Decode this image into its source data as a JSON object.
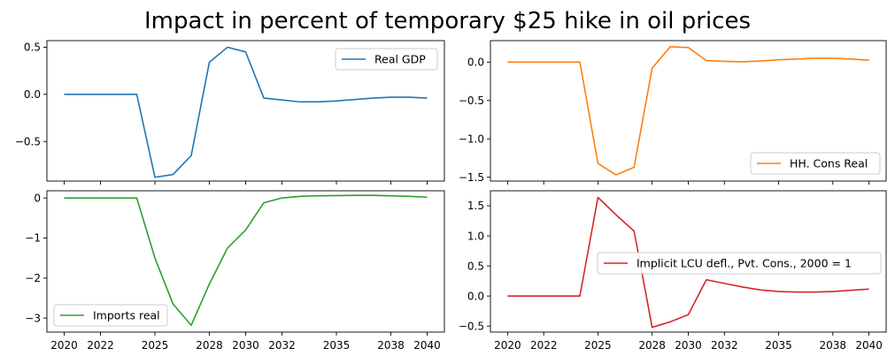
{
  "figure": {
    "title": "Impact in percent of temporary $25 hike in oil prices"
  },
  "chart_data": [
    {
      "type": "line",
      "panel": "top-left",
      "x": [
        2020,
        2021,
        2022,
        2023,
        2024,
        2025,
        2026,
        2027,
        2028,
        2029,
        2030,
        2031,
        2032,
        2033,
        2034,
        2035,
        2036,
        2037,
        2038,
        2039,
        2040
      ],
      "series": [
        {
          "name": "Real GDP",
          "color": "#1f77b4",
          "values": [
            0,
            0,
            0,
            0,
            0,
            -0.88,
            -0.85,
            -0.65,
            0.34,
            0.5,
            0.45,
            -0.04,
            -0.06,
            -0.08,
            -0.08,
            -0.07,
            -0.055,
            -0.04,
            -0.03,
            -0.03,
            -0.04
          ]
        }
      ],
      "ylim": [
        -0.92,
        0.57
      ],
      "yticks": [
        0.5,
        0.0,
        -0.5
      ],
      "ytick_labels": [
        "0.5",
        "0.0",
        "−0.5"
      ],
      "xticks": [],
      "legend": "upper right"
    },
    {
      "type": "line",
      "panel": "top-right",
      "x": [
        2020,
        2021,
        2022,
        2023,
        2024,
        2025,
        2026,
        2027,
        2028,
        2029,
        2030,
        2031,
        2032,
        2033,
        2034,
        2035,
        2036,
        2037,
        2038,
        2039,
        2040
      ],
      "series": [
        {
          "name": "HH. Cons Real",
          "color": "#ff7f0e",
          "values": [
            0,
            0,
            0,
            0,
            0,
            -1.32,
            -1.47,
            -1.37,
            -0.08,
            0.2,
            0.19,
            0.02,
            0.01,
            0.005,
            0.015,
            0.03,
            0.04,
            0.05,
            0.05,
            0.04,
            0.025
          ]
        }
      ],
      "ylim": [
        -1.55,
        0.28
      ],
      "yticks": [
        0.0,
        -0.5,
        -1.0,
        -1.5
      ],
      "ytick_labels": [
        "0.0",
        "−0.5",
        "−1.0",
        "−1.5"
      ],
      "xticks": [],
      "legend": "lower right"
    },
    {
      "type": "line",
      "panel": "bottom-left",
      "x": [
        2020,
        2021,
        2022,
        2023,
        2024,
        2025,
        2026,
        2027,
        2028,
        2029,
        2030,
        2031,
        2032,
        2033,
        2034,
        2035,
        2036,
        2037,
        2038,
        2039,
        2040
      ],
      "series": [
        {
          "name": "Imports real",
          "color": "#2ca02c",
          "values": [
            0,
            0,
            0,
            0,
            0,
            -1.5,
            -2.65,
            -3.18,
            -2.15,
            -1.25,
            -0.8,
            -0.12,
            0,
            0.04,
            0.055,
            0.06,
            0.065,
            0.065,
            0.055,
            0.04,
            0.02
          ]
        }
      ],
      "ylim": [
        -3.35,
        0.18
      ],
      "yticks": [
        0,
        -1,
        -2,
        -3
      ],
      "ytick_labels": [
        "0",
        "−1",
        "−2",
        "−3"
      ],
      "xticks": [
        2020,
        2022,
        2025,
        2028,
        2030,
        2032,
        2035,
        2038,
        2040
      ],
      "xtick_labels": [
        "2020",
        "2022",
        "2025",
        "2028",
        "2030",
        "2032",
        "2035",
        "2038",
        "2040"
      ],
      "legend": "lower left"
    },
    {
      "type": "line",
      "panel": "bottom-right",
      "x": [
        2020,
        2021,
        2022,
        2023,
        2024,
        2025,
        2026,
        2027,
        2028,
        2029,
        2030,
        2031,
        2032,
        2033,
        2034,
        2035,
        2036,
        2037,
        2038,
        2039,
        2040
      ],
      "series": [
        {
          "name": "Implicit LCU defl., Pvt. Cons., 2000 = 1",
          "color": "#d62728",
          "values": [
            0,
            0,
            0,
            0,
            0,
            1.64,
            1.35,
            1.08,
            -0.52,
            -0.43,
            -0.31,
            0.27,
            0.21,
            0.15,
            0.1,
            0.075,
            0.065,
            0.065,
            0.075,
            0.095,
            0.115
          ]
        }
      ],
      "ylim": [
        -0.6,
        1.75
      ],
      "yticks": [
        1.5,
        1.0,
        0.5,
        0.0,
        -0.5
      ],
      "ytick_labels": [
        "1.5",
        "1.0",
        "0.5",
        "0.0",
        "−0.5"
      ],
      "xticks": [
        2020,
        2022,
        2025,
        2028,
        2030,
        2032,
        2035,
        2038,
        2040
      ],
      "xtick_labels": [
        "2020",
        "2022",
        "2025",
        "2028",
        "2030",
        "2032",
        "2035",
        "2038",
        "2040"
      ],
      "legend": "center right"
    }
  ]
}
